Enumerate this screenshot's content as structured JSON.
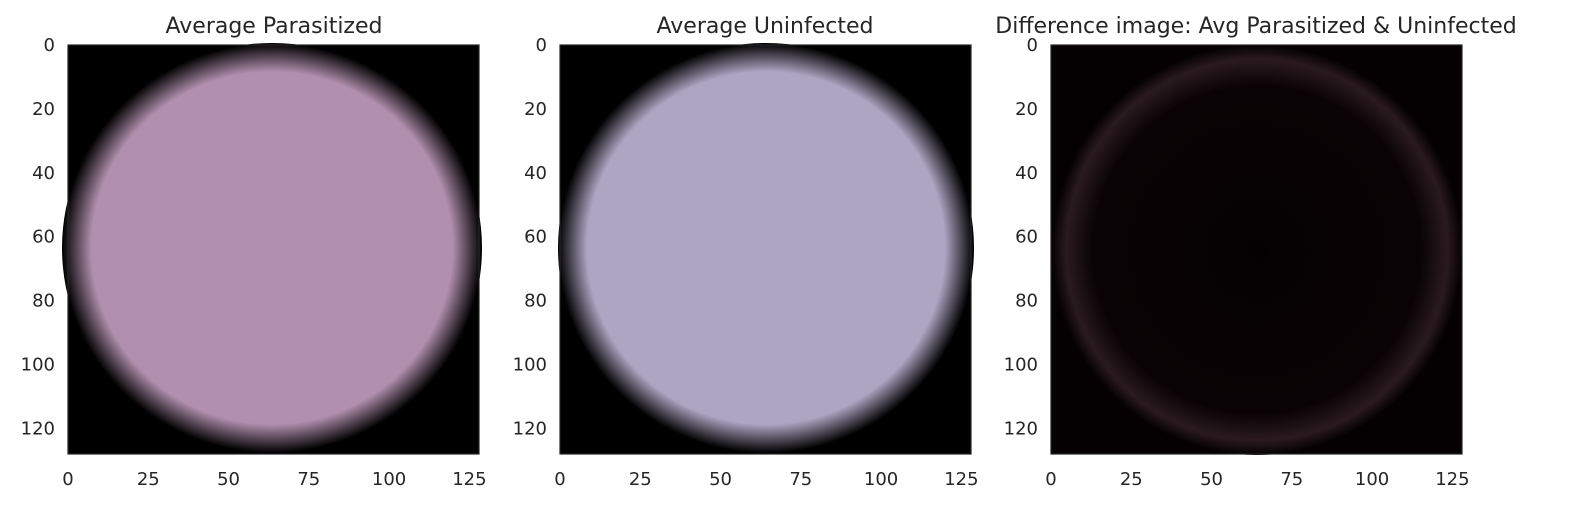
{
  "chart_data": [
    {
      "type": "heatmap",
      "title": "Average Parasitized",
      "image": "average parasitized cell",
      "fill_color": "#b18fae",
      "edge_color": "#000000",
      "xlim": [
        0,
        128
      ],
      "ylim": [
        128,
        0
      ],
      "xticks": [
        0,
        25,
        50,
        75,
        100,
        125
      ],
      "yticks": [
        0,
        20,
        40,
        60,
        80,
        100,
        120
      ],
      "grid": false
    },
    {
      "type": "heatmap",
      "title": "Average Uninfected",
      "image": "average uninfected cell",
      "fill_color": "#aea5c3",
      "edge_color": "#000000",
      "xlim": [
        0,
        128
      ],
      "ylim": [
        128,
        0
      ],
      "xticks": [
        0,
        25,
        50,
        75,
        100,
        125
      ],
      "yticks": [
        0,
        20,
        40,
        60,
        80,
        100,
        120
      ],
      "grid": false
    },
    {
      "type": "heatmap",
      "title": "Difference image: Avg Parasitized & Uninfected",
      "image": "difference of average images",
      "fill_color": "#050102",
      "edge_color": "#2a1a1f",
      "xlim": [
        0,
        128
      ],
      "ylim": [
        128,
        0
      ],
      "xticks": [
        0,
        25,
        50,
        75,
        100,
        125
      ],
      "yticks": [
        0,
        20,
        40,
        60,
        80,
        100,
        120
      ],
      "grid": false
    }
  ]
}
